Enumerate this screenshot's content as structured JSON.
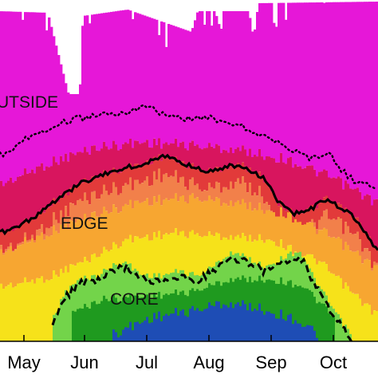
{
  "chart_data": {
    "type": "heatmap",
    "title": "",
    "xlabel": "",
    "ylabel": "",
    "x_ticks": [
      "May",
      "Jun",
      "Jul",
      "Aug",
      "Sep",
      "Oct"
    ],
    "grid": false,
    "legend": "none",
    "region_labels": [
      "UTSIDE",
      "EDGE",
      "CORE"
    ],
    "band_colors": {
      "outside": "#e617d8",
      "outside_edge": "#d8155e",
      "edge": "#e23a3a",
      "edge_inner": "#f2804a",
      "orange": "#f7a631",
      "yellow": "#f6e21a",
      "light_green": "#73d44a",
      "green": "#1f9a1f",
      "blue": "#1f3fd0"
    },
    "boundary_styles": {
      "dotted_outer": "#000000",
      "solid_edge": "#000000",
      "dashed_core": "#000000"
    }
  }
}
